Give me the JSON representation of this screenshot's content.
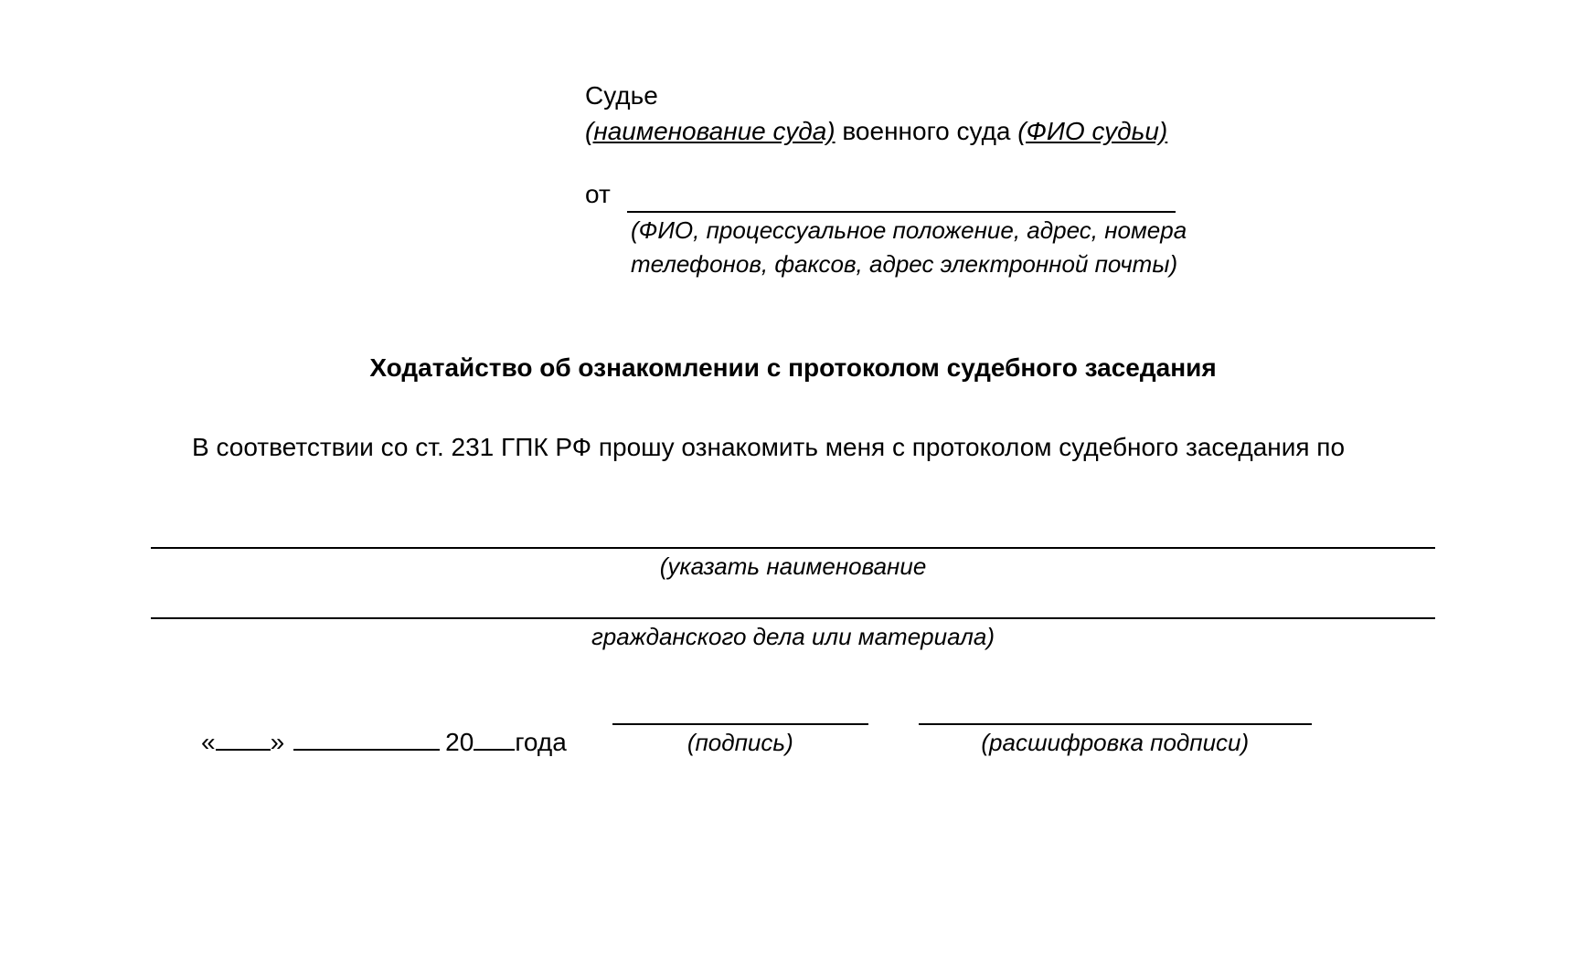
{
  "header": {
    "to_judge": "Судье",
    "court_name_placeholder": "(наименование суда)",
    "military_court_text": " военного суда ",
    "judge_name_placeholder": "(ФИО судьи)",
    "from_label": "от",
    "from_hint_line1": "(ФИО, процессуальное положение, адрес, номера",
    "from_hint_line2": "телефонов, факсов, адрес электронной почты)"
  },
  "title": "Ходатайство об ознакомлении с протоколом судебного заседания",
  "body": {
    "text": "В соответствии со ст. 231 ГПК РФ прошу ознакомить меня с протоколом судебного заседания по"
  },
  "blank_hints": {
    "line1": "(указать наименование",
    "line2": "гражданского дела или материала)"
  },
  "date_sign": {
    "quote_open": "«",
    "quote_close": "»",
    "year_prefix": " 20",
    "year_suffix": " года",
    "signature_hint": "(подпись)",
    "decipher_hint": "(расшифровка подписи)"
  },
  "styling": {
    "background_color": "#ffffff",
    "text_color": "#000000",
    "base_fontsize": 28,
    "hint_fontsize": 26,
    "font_family": "Arial",
    "underline_color": "#000000",
    "underline_width": 2
  }
}
